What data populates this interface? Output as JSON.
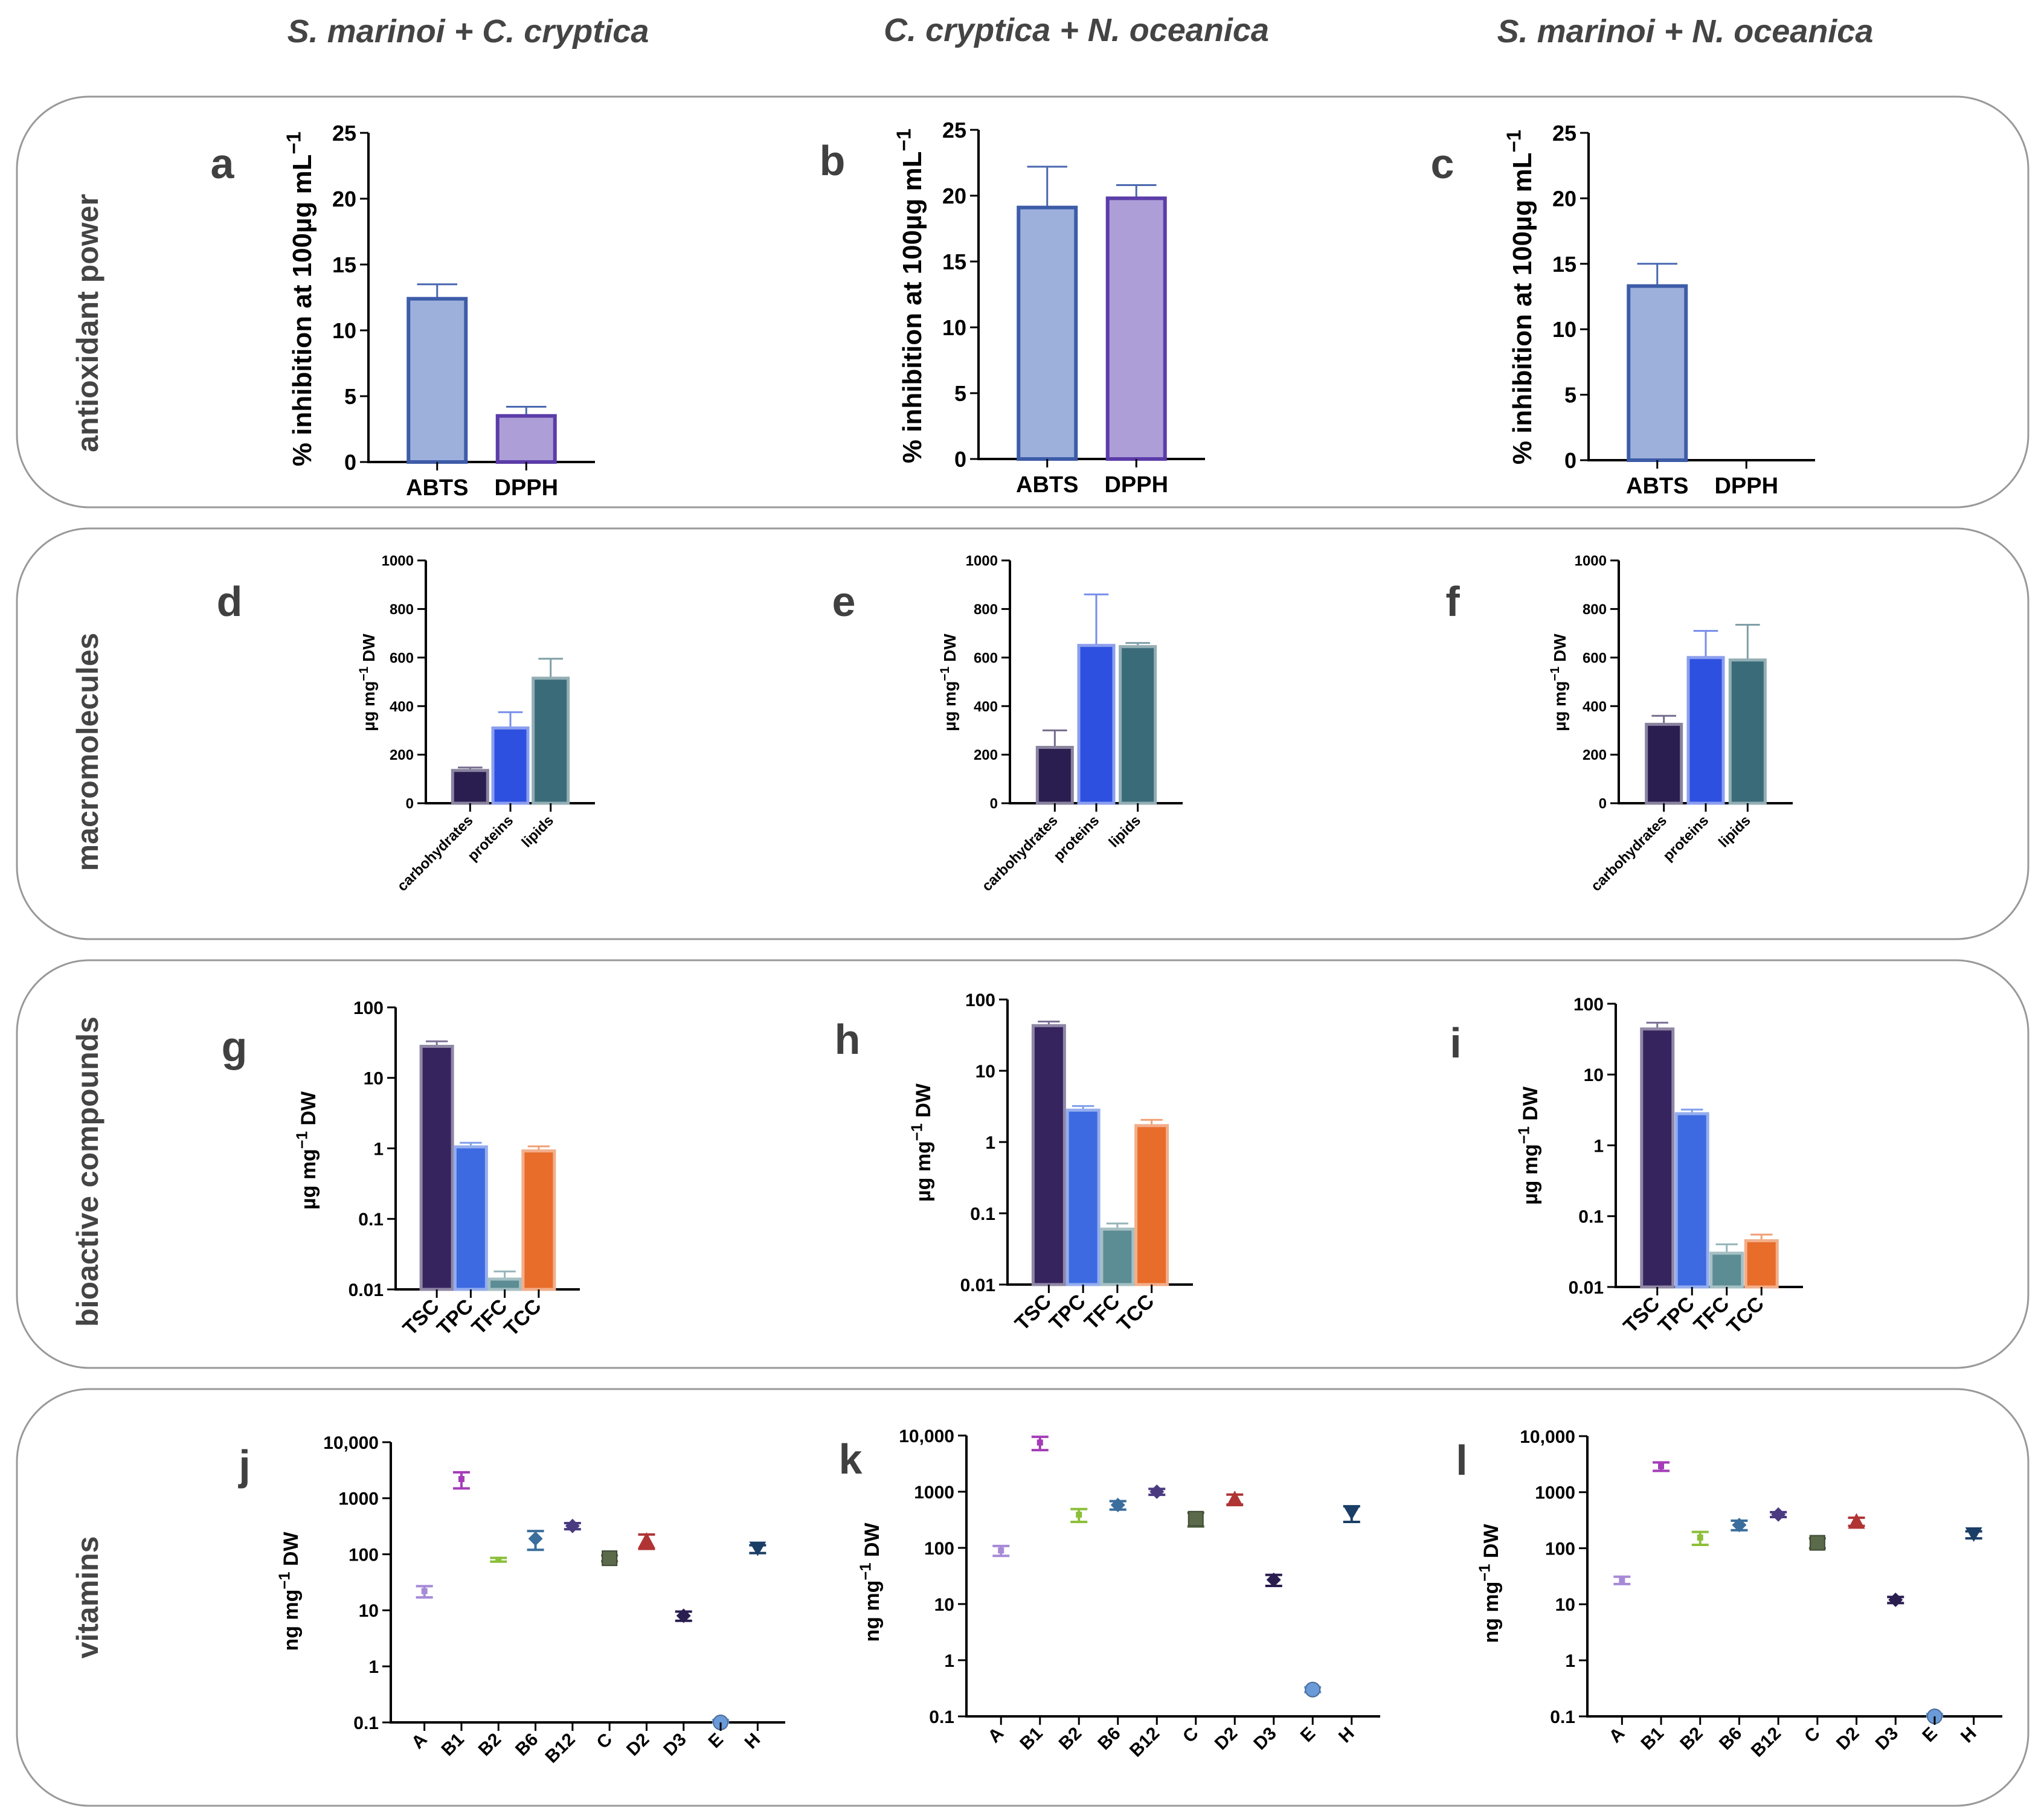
{
  "column_titles": [
    "S. marinoi + C. cryptica",
    "C. cryptica + N. oceanica",
    "S. marinoi + N. oceanica"
  ],
  "row_labels": [
    "antioxidant power",
    "macromolecules",
    "bioactive compounds",
    "vitamins"
  ],
  "colors": {
    "ABTS": "#9db0dc",
    "DPPH": "#ad9ed8",
    "carbohydrates": "#2a1d50",
    "proteins": "#2d50e0",
    "lipids": "#3a6b78",
    "TSC": "#35245e",
    "TPC": "#3d6ae0",
    "TFC": "#5c8c94",
    "TCC": "#e86c2a",
    "vitA": "#a68ad8",
    "vitB1": "#a43cb8",
    "vitB2": "#8cbf3a",
    "vitB6": "#3a6e9c",
    "vitB12": "#4a3a80",
    "vitC": "#5a6a4a",
    "vitD2": "#b03434",
    "vitD3": "#2a1d50",
    "vitE": "#6a9ad8",
    "vitH": "#1a3e66"
  },
  "chart_data": [
    {
      "id": "a",
      "row": 0,
      "col": 0,
      "type": "bar",
      "scale": "linear",
      "letter": "a",
      "ylabel_main": "% inhibition at 100µg mL",
      "ylabel_sup": "−1",
      "categories": [
        "ABTS",
        "DPPH"
      ],
      "values": [
        12.4,
        3.5
      ],
      "errors": [
        1.1,
        0.7
      ],
      "ylim": [
        0,
        25
      ],
      "ticks": [
        "0",
        "5",
        "10",
        "15",
        "20",
        "25"
      ],
      "tick_values": [
        0,
        5,
        10,
        15,
        20,
        25
      ]
    },
    {
      "id": "b",
      "row": 0,
      "col": 1,
      "type": "bar",
      "scale": "linear",
      "letter": "b",
      "ylabel_main": "% inhibition at 100µg mL",
      "ylabel_sup": "−1",
      "categories": [
        "ABTS",
        "DPPH"
      ],
      "values": [
        19.1,
        19.8
      ],
      "errors": [
        3.1,
        1.0
      ],
      "ylim": [
        0,
        25
      ],
      "ticks": [
        "0",
        "5",
        "10",
        "15",
        "20",
        "25"
      ],
      "tick_values": [
        0,
        5,
        10,
        15,
        20,
        25
      ]
    },
    {
      "id": "c",
      "row": 0,
      "col": 2,
      "type": "bar",
      "scale": "linear",
      "letter": "c",
      "ylabel_main": "% inhibition at 100µg mL",
      "ylabel_sup": "−1",
      "categories": [
        "ABTS",
        "DPPH"
      ],
      "values": [
        13.3,
        0
      ],
      "errors": [
        1.7,
        0
      ],
      "ylim": [
        0,
        25
      ],
      "ticks": [
        "0",
        "5",
        "10",
        "15",
        "20",
        "25"
      ],
      "tick_values": [
        0,
        5,
        10,
        15,
        20,
        25
      ]
    },
    {
      "id": "d",
      "row": 1,
      "col": 0,
      "type": "bar",
      "scale": "linear",
      "letter": "d",
      "ylabel_main": "µg mg",
      "ylabel_sup": "−1",
      "ylabel_tail": " DW",
      "categories": [
        "carbohydrates",
        "proteins",
        "lipids"
      ],
      "values": [
        135,
        310,
        515
      ],
      "errors": [
        12,
        65,
        80
      ],
      "ylim": [
        0,
        1000
      ],
      "ticks": [
        "0",
        "200",
        "400",
        "600",
        "800",
        "1000"
      ],
      "tick_values": [
        0,
        200,
        400,
        600,
        800,
        1000
      ]
    },
    {
      "id": "e",
      "row": 1,
      "col": 1,
      "type": "bar",
      "scale": "linear",
      "letter": "e",
      "ylabel_main": "µg mg",
      "ylabel_sup": "−1",
      "ylabel_tail": " DW",
      "categories": [
        "carbohydrates",
        "proteins",
        "lipids"
      ],
      "values": [
        230,
        650,
        645
      ],
      "errors": [
        70,
        210,
        15
      ],
      "ylim": [
        0,
        1000
      ],
      "ticks": [
        "0",
        "200",
        "400",
        "600",
        "800",
        "1000"
      ],
      "tick_values": [
        0,
        200,
        400,
        600,
        800,
        1000
      ]
    },
    {
      "id": "f",
      "row": 1,
      "col": 2,
      "type": "bar",
      "scale": "linear",
      "letter": "f",
      "ylabel_main": "µg mg",
      "ylabel_sup": "−1",
      "ylabel_tail": " DW",
      "categories": [
        "carbohydrates",
        "proteins",
        "lipids"
      ],
      "values": [
        325,
        600,
        590
      ],
      "errors": [
        35,
        110,
        145
      ],
      "ylim": [
        0,
        1000
      ],
      "ticks": [
        "0",
        "200",
        "400",
        "600",
        "800",
        "1000"
      ],
      "tick_values": [
        0,
        200,
        400,
        600,
        800,
        1000
      ]
    },
    {
      "id": "g",
      "row": 2,
      "col": 0,
      "type": "bar",
      "scale": "log",
      "letter": "g",
      "ylabel_main": "µg mg",
      "ylabel_sup": "−1",
      "ylabel_tail": " DW",
      "categories": [
        "TSC",
        "TPC",
        "TFC",
        "TCC"
      ],
      "values": [
        28,
        1.05,
        0.014,
        0.92
      ],
      "errors": [
        5,
        0.15,
        0.004,
        0.15
      ],
      "ylim": [
        0.01,
        100
      ],
      "ticks": [
        "0.01",
        "0.1",
        "1",
        "10",
        "100"
      ],
      "tick_values": [
        0.01,
        0.1,
        1,
        10,
        100
      ]
    },
    {
      "id": "h",
      "row": 2,
      "col": 1,
      "type": "bar",
      "scale": "log",
      "letter": "h",
      "ylabel_main": "µg mg",
      "ylabel_sup": "−1",
      "ylabel_tail": " DW",
      "categories": [
        "TSC",
        "TPC",
        "TFC",
        "TCC"
      ],
      "values": [
        43,
        2.8,
        0.06,
        1.7
      ],
      "errors": [
        6,
        0.4,
        0.012,
        0.35
      ],
      "ylim": [
        0.01,
        100
      ],
      "ticks": [
        "0.01",
        "0.1",
        "1",
        "10",
        "100"
      ],
      "tick_values": [
        0.01,
        0.1,
        1,
        10,
        100
      ]
    },
    {
      "id": "i",
      "row": 2,
      "col": 2,
      "type": "bar",
      "scale": "log",
      "letter": "i",
      "ylabel_main": "µg mg",
      "ylabel_sup": "−1",
      "ylabel_tail": " DW",
      "categories": [
        "TSC",
        "TPC",
        "TFC",
        "TCC"
      ],
      "values": [
        44,
        2.8,
        0.03,
        0.045
      ],
      "errors": [
        10,
        0.4,
        0.01,
        0.01
      ],
      "ylim": [
        0.01,
        100
      ],
      "ticks": [
        "0.01",
        "0.1",
        "1",
        "10",
        "100"
      ],
      "tick_values": [
        0.01,
        0.1,
        1,
        10,
        100
      ]
    },
    {
      "id": "j",
      "row": 3,
      "col": 0,
      "type": "scatter",
      "scale": "log",
      "letter": "j",
      "ylabel_main": "ng mg",
      "ylabel_sup": "−1",
      "ylabel_tail": " DW",
      "categories": [
        "A",
        "B1",
        "B2",
        "B6",
        "B12",
        "C",
        "D2",
        "D3",
        "E",
        "H"
      ],
      "values": [
        22,
        2200,
        80,
        190,
        320,
        85,
        175,
        8,
        0.1,
        125
      ],
      "errors": [
        5,
        700,
        6,
        70,
        40,
        10,
        50,
        1.5,
        0.01,
        20
      ],
      "ylim": [
        0.1,
        10000
      ],
      "ticks": [
        "0.1",
        "1",
        "10",
        "100",
        "1000",
        "10,000"
      ],
      "tick_values": [
        0.1,
        1,
        10,
        100,
        1000,
        10000
      ]
    },
    {
      "id": "k",
      "row": 3,
      "col": 1,
      "type": "scatter",
      "scale": "log",
      "letter": "k",
      "ylabel_main": "ng mg",
      "ylabel_sup": "−1",
      "ylabel_tail": " DW",
      "categories": [
        "A",
        "B1",
        "B2",
        "B6",
        "B12",
        "C",
        "D2",
        "D3",
        "E",
        "H"
      ],
      "values": [
        90,
        7500,
        390,
        580,
        1000,
        330,
        740,
        27,
        0.3,
        420
      ],
      "errors": [
        18,
        2000,
        100,
        100,
        120,
        90,
        150,
        6,
        0.03,
        130
      ],
      "ylim": [
        0.1,
        10000
      ],
      "ticks": [
        "0.1",
        "1",
        "10",
        "100",
        "1000",
        "10,000"
      ],
      "tick_values": [
        0.1,
        1,
        10,
        100,
        1000,
        10000
      ]
    },
    {
      "id": "l",
      "row": 3,
      "col": 2,
      "type": "scatter",
      "scale": "log",
      "letter": "l",
      "ylabel_main": "ng mg",
      "ylabel_sup": "−1",
      "ylabel_tail": " DW",
      "categories": [
        "A",
        "B1",
        "B2",
        "B6",
        "B12",
        "C",
        "D2",
        "D3",
        "E",
        "H"
      ],
      "values": [
        27,
        2900,
        155,
        260,
        400,
        125,
        300,
        12,
        0.1,
        175
      ],
      "errors": [
        4,
        500,
        40,
        50,
        40,
        25,
        50,
        1.5,
        0.01,
        25
      ],
      "ylim": [
        0.1,
        10000
      ],
      "ticks": [
        "0.1",
        "1",
        "10",
        "100",
        "1000",
        "10,000"
      ],
      "tick_values": [
        0.1,
        1,
        10,
        100,
        1000,
        10000
      ]
    }
  ]
}
